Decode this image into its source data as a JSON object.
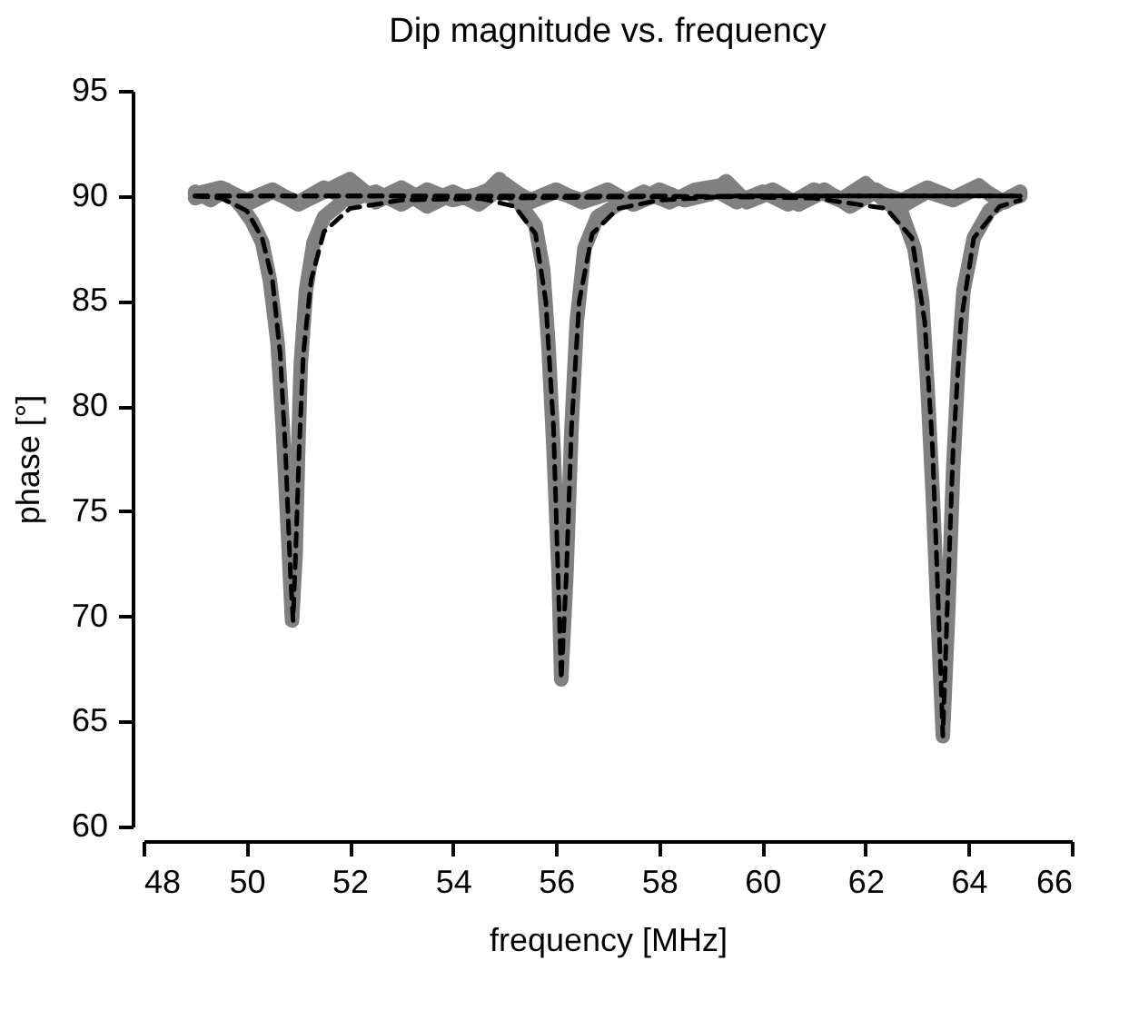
{
  "chart_data": {
    "type": "line",
    "title": "Dip magnitude vs. frequency",
    "xlabel": "frequency [MHz]",
    "ylabel": "phase [°]",
    "xlim": [
      48,
      66
    ],
    "xticks": [
      48,
      50,
      52,
      54,
      56,
      58,
      60,
      62,
      64,
      66
    ],
    "ylim": [
      60,
      95
    ],
    "yticks": [
      60,
      65,
      70,
      75,
      80,
      85,
      90,
      95
    ],
    "grid": false,
    "marker": "none",
    "series": [
      {
        "color": "#808080",
        "line_style": "solid",
        "x": [
          49.0,
          49.3,
          49.6,
          49.9,
          50.1,
          50.3,
          50.45,
          50.6,
          50.7,
          50.8,
          50.88,
          50.95,
          51.0,
          51.05,
          51.15,
          51.3,
          51.5,
          51.8,
          52.1,
          52.5,
          53.0,
          53.5,
          54.0,
          54.5,
          55.0,
          55.5,
          56.0,
          56.5,
          57.0,
          57.5,
          58.0,
          58.5,
          59.0,
          59.3,
          59.7,
          60.2,
          60.7,
          61.2,
          61.7,
          62.2,
          62.7,
          63.2,
          63.7,
          64.2,
          64.6,
          65.0
        ],
        "values": [
          90.2,
          89.8,
          90.3,
          89.5,
          88.8,
          87.8,
          86,
          83,
          79,
          74,
          69.8,
          73,
          78,
          82,
          85.5,
          87.8,
          89,
          89.6,
          90.6,
          89.8,
          90.4,
          89.7,
          90.2,
          89.6,
          90.5,
          89.8,
          90.3,
          89.7,
          90.1,
          89.6,
          90.3,
          89.8,
          90.1,
          90.7,
          89.7,
          90.2,
          89.6,
          90.3,
          89.5,
          90.2,
          89.8,
          90.4,
          89.9,
          90.5,
          89.7,
          90.2
        ]
      },
      {
        "color": "#808080",
        "line_style": "solid",
        "x": [
          49.0,
          49.5,
          50.0,
          50.5,
          51.0,
          51.5,
          52.0,
          52.5,
          53.0,
          53.5,
          54.0,
          54.5,
          54.9,
          55.3,
          55.6,
          55.75,
          55.85,
          55.95,
          56.05,
          56.1,
          56.2,
          56.3,
          56.4,
          56.55,
          56.8,
          57.2,
          57.7,
          58.2,
          58.7,
          59.2,
          59.7,
          60.2,
          60.7,
          61.2,
          61.7,
          62.2,
          62.7,
          63.2,
          63.7,
          64.2,
          64.7,
          65.0
        ],
        "values": [
          90.1,
          90.4,
          89.8,
          90.3,
          89.6,
          90.2,
          90.8,
          89.7,
          90.3,
          89.5,
          90.1,
          89.8,
          90.8,
          89.6,
          88.6,
          86.5,
          83,
          78,
          72,
          67,
          72,
          79,
          84,
          87.5,
          89,
          89.6,
          90.2,
          89.7,
          90.3,
          90.5,
          89.8,
          90.3,
          89.6,
          90.2,
          89.7,
          90.3,
          89.5,
          90.2,
          89.8,
          90.4,
          89.7,
          90.1
        ]
      },
      {
        "color": "#808080",
        "line_style": "solid",
        "x": [
          49.0,
          49.5,
          50.0,
          50.5,
          51.0,
          51.5,
          52.0,
          52.5,
          53.0,
          53.5,
          54.0,
          54.5,
          55.0,
          55.5,
          56.0,
          56.5,
          57.0,
          57.5,
          58.0,
          58.5,
          59.0,
          59.5,
          60.0,
          60.5,
          61.0,
          61.5,
          62.0,
          62.4,
          62.7,
          62.95,
          63.1,
          63.2,
          63.3,
          63.4,
          63.5,
          63.6,
          63.7,
          63.8,
          63.9,
          64.1,
          64.4,
          64.7,
          65.0
        ],
        "values": [
          89.9,
          90.3,
          89.6,
          90.2,
          89.7,
          90.4,
          89.8,
          90.2,
          89.6,
          90.3,
          89.8,
          90.1,
          90.6,
          89.7,
          90.2,
          89.8,
          90.3,
          89.6,
          90.1,
          89.8,
          90.4,
          89.7,
          90.2,
          89.6,
          90.3,
          89.8,
          90.6,
          89.7,
          89.2,
          87.5,
          85,
          81,
          76,
          70,
          64.3,
          70,
          77,
          82,
          85.5,
          88,
          89.3,
          89.8,
          90
        ]
      },
      {
        "color": "#000000",
        "line_style": "dashed",
        "x": [
          49.0,
          49.5,
          50.0,
          50.3,
          50.5,
          50.65,
          50.75,
          50.85,
          50.9,
          50.95,
          51.02,
          51.1,
          51.25,
          51.5,
          52.0,
          53.0,
          55.0,
          60.0,
          65.0
        ],
        "values": [
          90,
          89.9,
          89.3,
          88,
          86,
          82.5,
          78,
          72,
          69.8,
          73,
          78,
          82.5,
          86,
          88.3,
          89.4,
          89.8,
          89.9,
          90,
          90
        ]
      },
      {
        "color": "#000000",
        "line_style": "dashed",
        "x": [
          49.0,
          53.0,
          54.5,
          55.2,
          55.6,
          55.8,
          55.95,
          56.05,
          56.1,
          56.2,
          56.3,
          56.45,
          56.7,
          57.2,
          58.0,
          59.5,
          65.0
        ],
        "values": [
          90,
          90,
          89.9,
          89.5,
          88.2,
          85,
          79,
          71,
          67,
          72,
          79,
          85,
          88.2,
          89.4,
          89.8,
          90,
          90
        ]
      },
      {
        "color": "#000000",
        "line_style": "dashed",
        "x": [
          49.0,
          58.0,
          61.0,
          62.4,
          62.9,
          63.15,
          63.3,
          63.42,
          63.5,
          63.58,
          63.7,
          63.85,
          64.1,
          64.6,
          65.0
        ],
        "values": [
          90,
          90,
          89.9,
          89.4,
          88,
          84,
          78,
          70,
          64.3,
          70,
          78,
          84,
          88,
          89.5,
          89.8
        ]
      }
    ]
  }
}
